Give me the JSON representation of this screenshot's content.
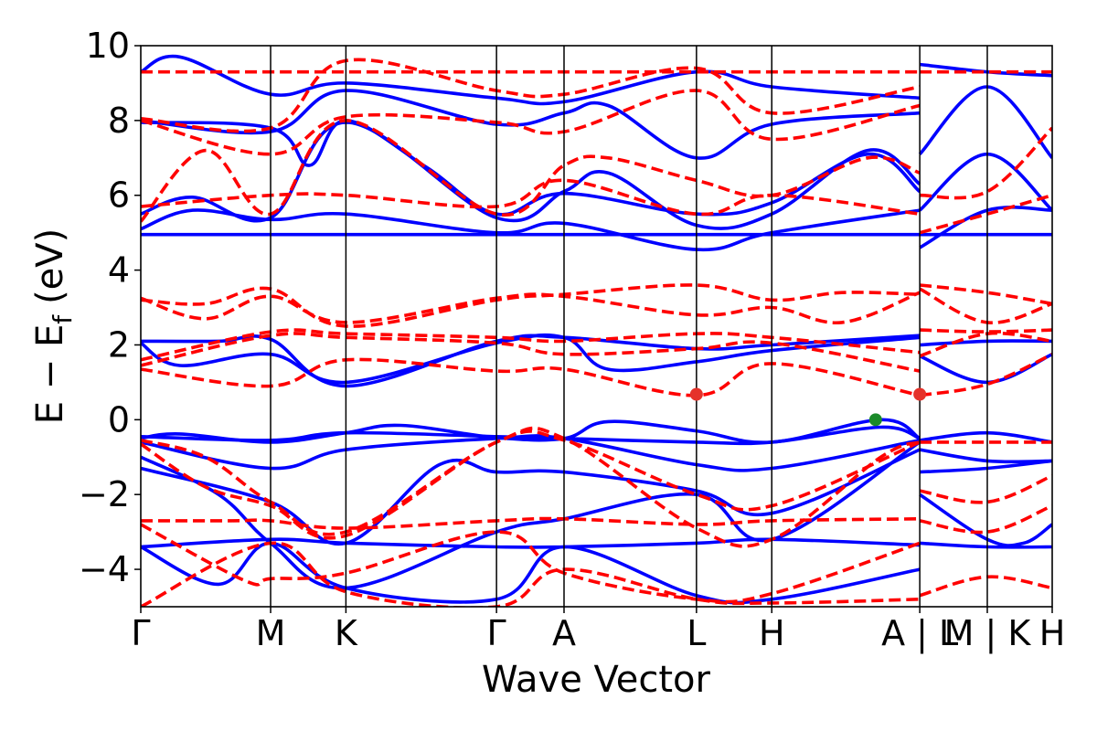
{
  "chart_data": {
    "type": "line",
    "title": "",
    "xlabel": "Wave Vector",
    "ylabel_main": "E − E",
    "ylabel_sub": "f",
    "ylabel_unit": "(eV)",
    "ylim": [
      -5,
      10
    ],
    "yticks": [
      -4,
      -2,
      0,
      2,
      4,
      6,
      8,
      10
    ],
    "ytick_labels": [
      "−4",
      "−2",
      "0",
      "2",
      "4",
      "6",
      "8",
      "10"
    ],
    "xlim": [
      0,
      7.02
    ],
    "kpoints": [
      {
        "label": "Γ",
        "x": 0.0
      },
      {
        "label": "M",
        "x": 1.0
      },
      {
        "label": "K",
        "x": 1.58
      },
      {
        "label": "Γ",
        "x": 2.74
      },
      {
        "label": "A",
        "x": 3.26
      },
      {
        "label": "L",
        "x": 4.28
      },
      {
        "label": "H",
        "x": 4.86
      },
      {
        "label": "A | L",
        "x": 6.0
      },
      {
        "label": "M | K",
        "x": 6.52
      },
      {
        "label": "H",
        "x": 7.02
      }
    ],
    "series": [
      {
        "color": "#0000ff",
        "style": "solid",
        "bands": [
          {
            "x": [
              0,
              1,
              1.58,
              2.74,
              3.26,
              4.28,
              4.86,
              5.7,
              6.0
            ],
            "y": [
              -0.45,
              -0.55,
              -0.35,
              -0.45,
              -0.5,
              -0.6,
              -0.6,
              -0.2,
              -0.5
            ]
          },
          {
            "x": [
              0,
              0.3,
              1,
              1.58,
              2,
              2.74,
              3.26,
              3.6,
              4.28,
              4.86,
              5.7,
              6.0
            ],
            "y": [
              -0.5,
              -0.38,
              -0.6,
              -0.35,
              -0.15,
              -0.48,
              -0.5,
              -0.05,
              -0.3,
              -0.6,
              0.0,
              -0.5
            ]
          },
          {
            "x": [
              0,
              1,
              1.58,
              2.74,
              3.26,
              4.28,
              4.86,
              6.0
            ],
            "y": [
              -0.6,
              -1.3,
              -0.8,
              -0.5,
              -0.5,
              -1.2,
              -1.3,
              -0.55
            ]
          },
          {
            "x": [
              0,
              1,
              1.58,
              2.3,
              2.74,
              3.26,
              4.28,
              4.86,
              6.0
            ],
            "y": [
              -1.3,
              -2.2,
              -3.3,
              -1.2,
              -1.4,
              -1.4,
              -1.9,
              -2.5,
              -0.8
            ]
          },
          {
            "x": [
              0,
              0.6,
              1,
              1.58,
              2.74,
              3.26,
              4.28,
              4.86,
              6.0
            ],
            "y": [
              -1.0,
              -2.0,
              -3.3,
              -4.5,
              -3.0,
              -2.65,
              -2.0,
              -3.2,
              -0.6
            ]
          },
          {
            "x": [
              0,
              1,
              1.58,
              2.74,
              3.26,
              4.28,
              4.86,
              6.0
            ],
            "y": [
              -3.4,
              -3.2,
              -3.3,
              -3.4,
              -3.4,
              -3.3,
              -3.2,
              -3.35
            ]
          },
          {
            "x": [
              0,
              0.6,
              1,
              1.58,
              2.74,
              3.26,
              4.28,
              4.86,
              6.0
            ],
            "y": [
              -3.4,
              -4.4,
              -3.3,
              -4.5,
              -4.8,
              -3.4,
              -4.7,
              -4.8,
              -4.0
            ]
          },
          {
            "x": [
              0,
              0.3,
              1,
              1.58,
              2.74,
              3.26,
              3.6,
              4.28,
              4.86,
              6.0
            ],
            "y": [
              2.05,
              1.45,
              1.75,
              1.0,
              2.05,
              2.2,
              1.35,
              1.55,
              1.85,
              2.2
            ]
          },
          {
            "x": [
              0,
              0.6,
              1,
              1.58,
              2.74,
              3.26,
              4.28,
              4.86,
              6.0
            ],
            "y": [
              2.1,
              2.1,
              2.15,
              0.9,
              2.1,
              2.2,
              1.9,
              2.0,
              2.25
            ]
          },
          {
            "x": [
              0,
              1,
              1.58,
              2.74,
              3.26,
              4.28,
              4.86,
              6.0
            ],
            "y": [
              4.95,
              4.95,
              4.95,
              4.95,
              4.95,
              4.95,
              4.95,
              4.95
            ]
          },
          {
            "x": [
              0,
              0.4,
              1,
              1.58,
              2.74,
              3.26,
              4.28,
              4.86,
              6.0
            ],
            "y": [
              5.1,
              5.6,
              5.35,
              5.5,
              5.0,
              5.25,
              4.55,
              5.0,
              5.6
            ]
          },
          {
            "x": [
              0,
              0.4,
              1,
              1.58,
              2.74,
              3.26,
              3.6,
              4.28,
              4.86,
              5.6,
              6.0
            ],
            "y": [
              5.5,
              5.95,
              5.4,
              7.95,
              5.4,
              6.1,
              6.6,
              5.2,
              5.5,
              7.2,
              6.3
            ]
          },
          {
            "x": [
              0,
              1,
              1.3,
              1.58,
              2.2,
              2.74,
              3.26,
              4.28,
              4.86,
              5.6,
              6.0
            ],
            "y": [
              7.95,
              7.8,
              6.8,
              8.0,
              6.75,
              5.5,
              6.05,
              5.5,
              5.8,
              7.1,
              6.1
            ]
          },
          {
            "x": [
              0,
              1,
              1.58,
              2.74,
              3.26,
              3.6,
              4.28,
              4.86,
              6.0
            ],
            "y": [
              8.0,
              7.7,
              8.8,
              7.9,
              8.2,
              8.4,
              7.0,
              7.9,
              8.2
            ]
          },
          {
            "x": [
              0,
              0.3,
              1,
              1.58,
              2.74,
              3.26,
              4.28,
              4.86,
              6.0
            ],
            "y": [
              9.3,
              9.7,
              8.7,
              9.0,
              8.6,
              8.5,
              9.3,
              8.9,
              8.6
            ]
          },
          {
            "x": [
              6.0,
              6.52,
              7.02
            ],
            "y": [
              -0.55,
              -0.35,
              -0.6
            ]
          },
          {
            "x": [
              6.0,
              6.52,
              7.02
            ],
            "y": [
              -0.8,
              -1.1,
              -1.1
            ]
          },
          {
            "x": [
              6.0,
              6.52,
              7.02
            ],
            "y": [
              -1.4,
              -1.3,
              -1.1
            ]
          },
          {
            "x": [
              6.0,
              6.52,
              6.8,
              7.02
            ],
            "y": [
              -2.0,
              -3.2,
              -3.3,
              -2.8
            ]
          },
          {
            "x": [
              6.0,
              6.52,
              7.02
            ],
            "y": [
              -3.3,
              -3.4,
              -3.4
            ]
          },
          {
            "x": [
              6.0,
              6.52,
              7.02
            ],
            "y": [
              1.7,
              1.0,
              1.75
            ]
          },
          {
            "x": [
              6.0,
              6.52,
              7.02
            ],
            "y": [
              2.0,
              2.1,
              2.1
            ]
          },
          {
            "x": [
              6.0,
              6.52,
              7.02
            ],
            "y": [
              4.95,
              4.95,
              4.95
            ]
          },
          {
            "x": [
              6.0,
              6.52,
              7.02
            ],
            "y": [
              4.6,
              5.6,
              5.6
            ]
          },
          {
            "x": [
              6.0,
              6.52,
              7.02
            ],
            "y": [
              5.6,
              7.1,
              5.6
            ]
          },
          {
            "x": [
              6.0,
              6.52,
              7.02
            ],
            "y": [
              7.1,
              8.9,
              7.0
            ]
          },
          {
            "x": [
              6.0,
              6.52,
              7.02
            ],
            "y": [
              9.5,
              9.3,
              9.2
            ]
          }
        ]
      },
      {
        "color": "#ff0000",
        "style": "dashed",
        "bands": [
          {
            "x": [
              0,
              0.5,
              1,
              1.58,
              2.74,
              3.26,
              4.28,
              4.86,
              5.7,
              6.0
            ],
            "y": [
              -0.55,
              -1.0,
              -2.2,
              -3.0,
              -0.6,
              -0.5,
              -2.9,
              -3.2,
              -1.0,
              -0.6
            ]
          },
          {
            "x": [
              0,
              0.5,
              1,
              1.58,
              2.74,
              3.26,
              4.28,
              4.86,
              6.0
            ],
            "y": [
              -0.65,
              -1.8,
              -2.3,
              -3.1,
              -0.6,
              -0.55,
              -2.0,
              -2.3,
              -0.6
            ]
          },
          {
            "x": [
              0,
              0.7,
              1,
              1.58,
              2.74,
              3.26,
              4.28,
              4.86,
              6.0
            ],
            "y": [
              -2.7,
              -2.7,
              -2.7,
              -2.9,
              -2.7,
              -2.65,
              -2.8,
              -2.7,
              -2.65
            ]
          },
          {
            "x": [
              0,
              0.8,
              1,
              1.58,
              2.74,
              3.26,
              4.28,
              4.86,
              6.0
            ],
            "y": [
              -2.8,
              -4.3,
              -4.25,
              -4.1,
              -3.0,
              -4.1,
              -4.8,
              -4.65,
              -3.3
            ]
          },
          {
            "x": [
              0,
              1,
              1.58,
              2.74,
              3.26,
              4.28,
              4.86,
              6.0
            ],
            "y": [
              -5.0,
              -3.3,
              -4.6,
              -5.0,
              -4.0,
              -4.8,
              -4.9,
              -4.8
            ]
          },
          {
            "x": [
              0,
              1,
              1.58,
              2.74,
              3.26,
              4.28,
              4.86,
              6.0
            ],
            "y": [
              1.35,
              0.9,
              1.6,
              1.3,
              1.35,
              0.65,
              1.5,
              0.65
            ]
          },
          {
            "x": [
              0,
              1,
              1.58,
              2.74,
              3.26,
              4.28,
              4.86,
              6.0
            ],
            "y": [
              1.45,
              2.25,
              2.2,
              2.05,
              1.75,
              1.9,
              2.05,
              1.3
            ]
          },
          {
            "x": [
              0,
              1,
              1.58,
              2.74,
              3.26,
              4.28,
              4.86,
              6.0
            ],
            "y": [
              1.6,
              2.35,
              2.3,
              2.2,
              2.1,
              2.3,
              2.2,
              1.8
            ]
          },
          {
            "x": [
              0,
              0.5,
              1,
              1.58,
              2.74,
              3.26,
              4.28,
              4.86,
              5.4,
              6.0
            ],
            "y": [
              3.25,
              2.7,
              3.3,
              2.6,
              3.25,
              3.3,
              2.8,
              3.0,
              2.6,
              3.4
            ]
          },
          {
            "x": [
              0,
              0.5,
              1,
              1.58,
              2.74,
              3.26,
              4.28,
              4.86,
              5.4,
              6.0
            ],
            "y": [
              3.2,
              3.1,
              3.5,
              2.5,
              3.2,
              3.35,
              3.6,
              3.2,
              3.4,
              3.35
            ]
          },
          {
            "x": [
              0,
              1,
              1.58,
              2.74,
              3.26,
              4.28,
              4.86,
              6.0
            ],
            "y": [
              5.7,
              6.0,
              6.0,
              5.7,
              6.4,
              5.5,
              6.0,
              5.5
            ]
          },
          {
            "x": [
              0,
              0.5,
              1,
              1.58,
              2.74,
              3.26,
              3.6,
              4.28,
              4.86,
              5.6,
              6.0
            ],
            "y": [
              5.3,
              7.2,
              5.5,
              8.0,
              5.5,
              6.8,
              7.0,
              6.4,
              6.0,
              7.0,
              6.6
            ]
          },
          {
            "x": [
              0,
              1,
              1.58,
              2.74,
              3.26,
              4.28,
              4.86,
              6.0
            ],
            "y": [
              8.0,
              7.1,
              8.1,
              7.95,
              7.7,
              8.8,
              7.5,
              8.4
            ]
          },
          {
            "x": [
              0,
              1,
              1.58,
              2.74,
              3.26,
              4.28,
              4.86,
              6.0
            ],
            "y": [
              8.05,
              7.8,
              9.6,
              8.8,
              8.7,
              9.4,
              8.2,
              8.9
            ]
          },
          {
            "x": [
              0,
              1,
              1.58,
              2.74,
              3.26,
              4.28,
              4.86,
              6.0
            ],
            "y": [
              9.3,
              9.3,
              9.3,
              9.3,
              9.3,
              9.3,
              9.3,
              9.3
            ]
          },
          {
            "x": [
              6.0,
              6.52,
              7.02
            ],
            "y": [
              -0.6,
              -0.6,
              -0.6
            ]
          },
          {
            "x": [
              6.0,
              6.52,
              7.02
            ],
            "y": [
              -1.9,
              -2.2,
              -1.5
            ]
          },
          {
            "x": [
              6.0,
              6.52,
              7.02
            ],
            "y": [
              -2.7,
              -3.0,
              -2.3
            ]
          },
          {
            "x": [
              6.0,
              6.52,
              7.02
            ],
            "y": [
              -4.7,
              -4.2,
              -4.5
            ]
          },
          {
            "x": [
              6.0,
              6.52,
              7.02
            ],
            "y": [
              0.65,
              0.95,
              1.75
            ]
          },
          {
            "x": [
              6.0,
              6.52,
              7.02
            ],
            "y": [
              1.7,
              2.3,
              2.1
            ]
          },
          {
            "x": [
              6.0,
              6.52,
              7.02
            ],
            "y": [
              2.4,
              2.35,
              2.4
            ]
          },
          {
            "x": [
              6.0,
              6.52,
              7.02
            ],
            "y": [
              3.5,
              2.6,
              3.1
            ]
          },
          {
            "x": [
              6.0,
              6.52,
              7.02
            ],
            "y": [
              3.6,
              3.4,
              3.1
            ]
          },
          {
            "x": [
              6.0,
              6.52,
              7.02
            ],
            "y": [
              5.0,
              5.5,
              6.0
            ]
          },
          {
            "x": [
              6.0,
              6.52,
              7.02
            ],
            "y": [
              6.0,
              6.1,
              7.8
            ]
          },
          {
            "x": [
              6.0,
              6.52,
              7.02
            ],
            "y": [
              9.3,
              9.3,
              9.3
            ]
          }
        ]
      }
    ],
    "markers": [
      {
        "x": 4.28,
        "y": 0.68,
        "color": "#e5322a"
      },
      {
        "x": 6.0,
        "y": 0.68,
        "color": "#e5322a"
      },
      {
        "x": 5.66,
        "y": 0.0,
        "color": "#1b8a2a"
      }
    ],
    "grid": false
  }
}
